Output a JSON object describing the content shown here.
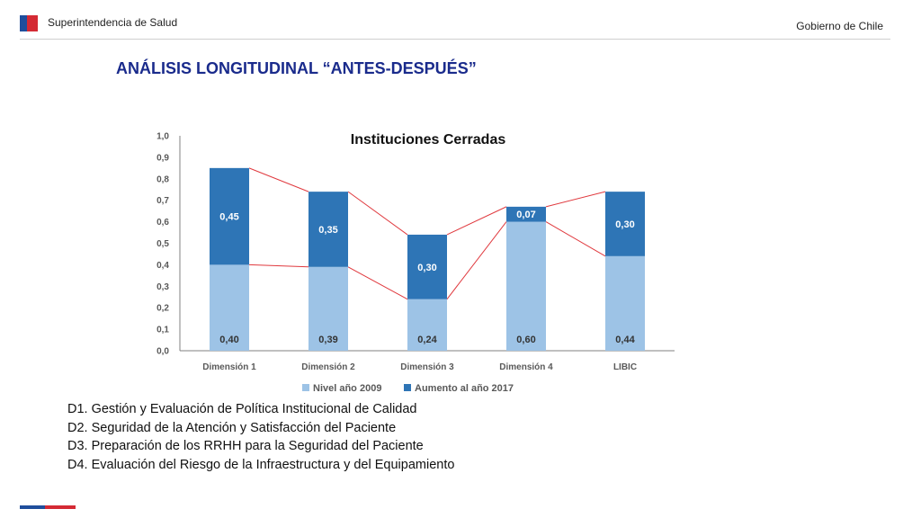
{
  "header": {
    "org_name": "Superintendencia de Salud",
    "gov_label": "Gobierno de Chile",
    "brand_colors": {
      "blue": "#1f4e9c",
      "red": "#d42a34"
    }
  },
  "slide": {
    "title": "ANÁLISIS LONGITUDINAL “ANTES-DESPUÉS”",
    "title_color": "#1a2b8c"
  },
  "chart_data": {
    "type": "bar",
    "stacked": true,
    "title": "Instituciones Cerradas",
    "categories": [
      "Dimensión 1",
      "Dimensión 2",
      "Dimensión 3",
      "Dimensión 4",
      "LIBIC"
    ],
    "series": [
      {
        "name": "Nivel año 2009",
        "values": [
          0.4,
          0.39,
          0.24,
          0.6,
          0.44
        ],
        "labels": [
          "0,40",
          "0,39",
          "0,24",
          "0,60",
          "0,44"
        ],
        "color": "#9dc3e6"
      },
      {
        "name": "Aumento al año 2017",
        "values": [
          0.45,
          0.35,
          0.3,
          0.07,
          0.3
        ],
        "labels": [
          "0,45",
          "0,35",
          "0,30",
          "0,07",
          "0,30"
        ],
        "color": "#2e75b6"
      }
    ],
    "ylim": [
      0,
      1
    ],
    "yticks": [
      "0,0",
      "0,1",
      "0,2",
      "0,3",
      "0,4",
      "0,5",
      "0,6",
      "0,7",
      "0,8",
      "0,9",
      "1,0"
    ],
    "connector_lines_color": "#e0393e",
    "legend_position": "bottom",
    "grid": false
  },
  "notes": [
    "D1. Gestión y Evaluación de Política Institucional de Calidad",
    "D2. Seguridad de la Atención y Satisfacción del Paciente",
    "D3. Preparación de los RRHH para la Seguridad del Paciente",
    "D4. Evaluación del Riesgo de la Infraestructura y del Equipamiento"
  ]
}
